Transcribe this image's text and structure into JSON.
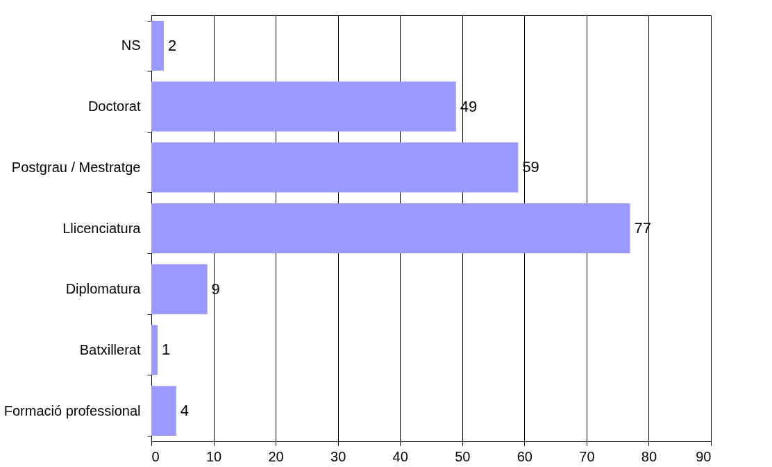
{
  "chart_data": {
    "type": "bar",
    "orientation": "horizontal",
    "categories": [
      "NS",
      "Doctorat",
      "Postgrau / Mestratge",
      "Llicenciatura",
      "Diplomatura",
      "Batxillerat",
      "Formació professional"
    ],
    "values": [
      2,
      49,
      59,
      77,
      9,
      1,
      4
    ],
    "color": "#9999ff",
    "xlim": [
      0,
      90
    ],
    "xticks": [
      0,
      10,
      20,
      30,
      40,
      50,
      60,
      70,
      80,
      90
    ],
    "grid": "x",
    "data_labels": true
  }
}
